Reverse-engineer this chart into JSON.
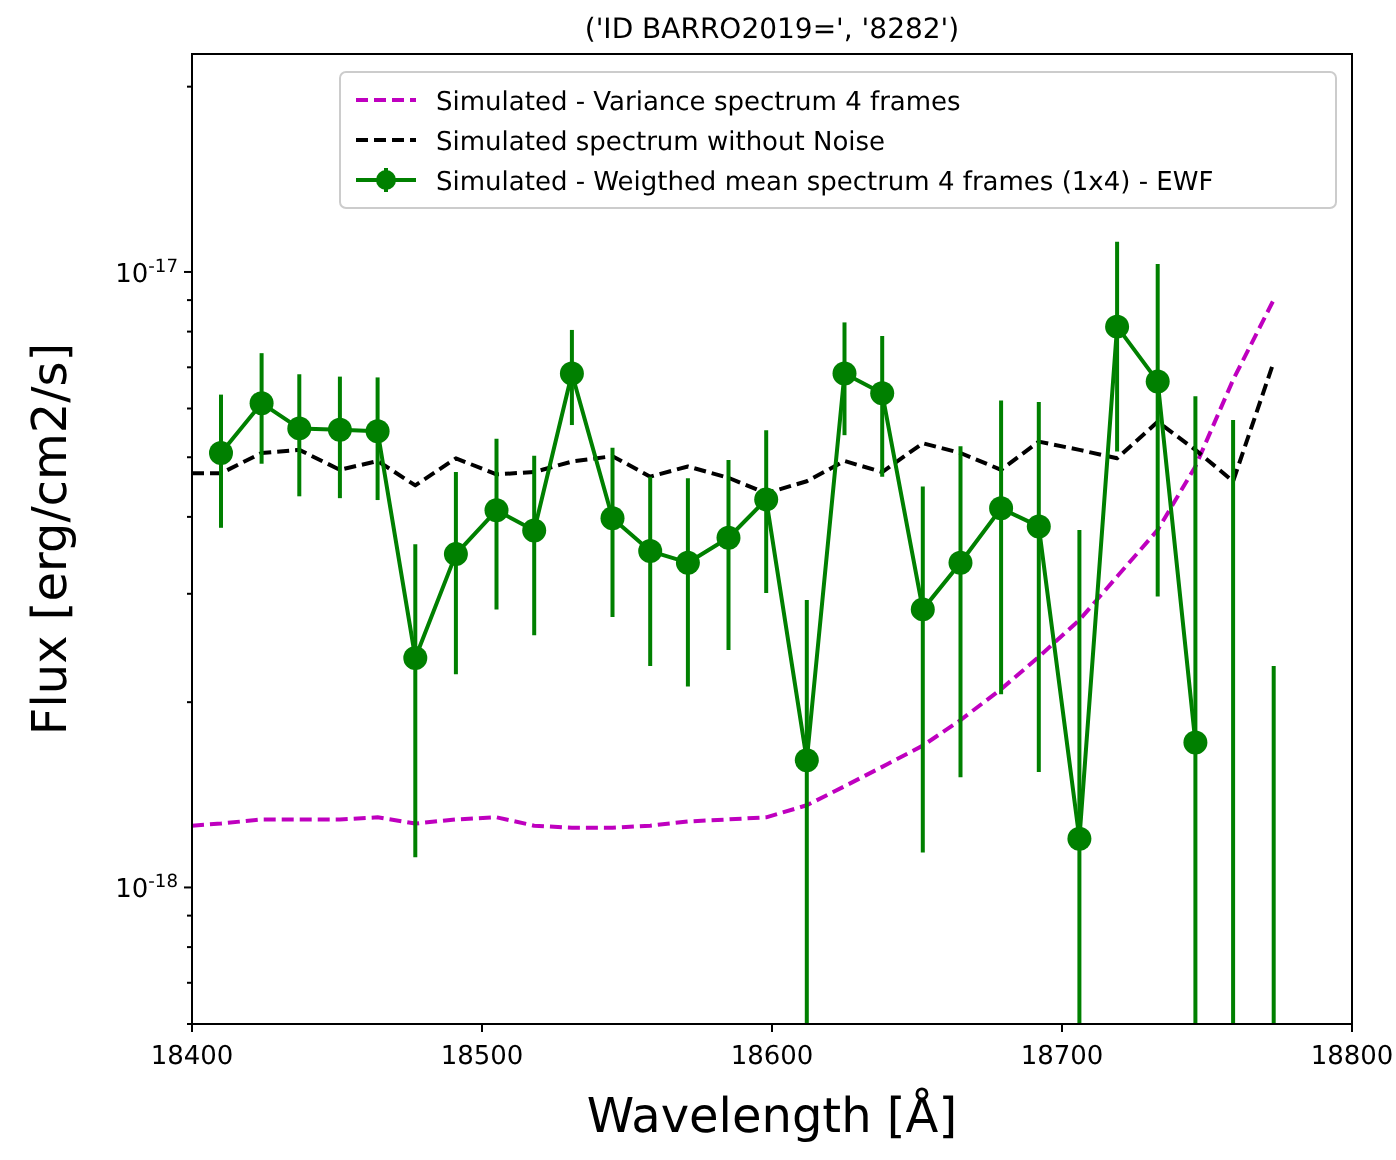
{
  "chart_data": {
    "type": "line",
    "title": "('ID BARRO2019=', '8282')",
    "xlabel": "Wavelength [Å]",
    "ylabel": "Flux [erg/cm2/s]",
    "log": "y",
    "legend": "top right",
    "grid": false,
    "xlim": [
      18400,
      18800
    ],
    "xticks": [
      18400,
      18500,
      18600,
      18700,
      18800
    ],
    "ylim": [
      6e-19,
      2.26e-17
    ],
    "yticks": [
      {
        "value": 6e-19,
        "label": null
      },
      {
        "value": 7e-19,
        "label": null
      },
      {
        "value": 8e-19,
        "label": null
      },
      {
        "value": 9e-19,
        "label": null
      },
      {
        "value": 1e-18,
        "label": "10$^{-18}$"
      },
      {
        "value": 2e-18,
        "label": null
      },
      {
        "value": 3e-18,
        "label": null
      },
      {
        "value": 4e-18,
        "label": null
      },
      {
        "value": 5e-18,
        "label": null
      },
      {
        "value": 6e-18,
        "label": null
      },
      {
        "value": 7e-18,
        "label": null
      },
      {
        "value": 8e-18,
        "label": null
      },
      {
        "value": 9e-18,
        "label": null
      },
      {
        "value": 1e-17,
        "label": "10$^{-17}$"
      },
      {
        "value": 2e-17,
        "label": null
      }
    ],
    "series": [
      {
        "name": "Simulated - Variance spectrum 4 frames",
        "color": "#bf00bf",
        "line_style": "dashed",
        "marker": "none",
        "x": [
          18400,
          18410,
          18424,
          18437,
          18451,
          18464,
          18477,
          18491,
          18505,
          18518,
          18531,
          18545,
          18558,
          18571,
          18585,
          18598,
          18612,
          18625,
          18638,
          18652,
          18665,
          18679,
          18692,
          18706,
          18719,
          18733,
          18746,
          18759,
          18773
        ],
        "values": [
          1.26e-18,
          1.27e-18,
          1.29e-18,
          1.29e-18,
          1.29e-18,
          1.3e-18,
          1.27e-18,
          1.29e-18,
          1.3e-18,
          1.26e-18,
          1.25e-18,
          1.25e-18,
          1.26e-18,
          1.28e-18,
          1.29e-18,
          1.3e-18,
          1.36e-18,
          1.46e-18,
          1.57e-18,
          1.7e-18,
          1.87e-18,
          2.1e-18,
          2.37e-18,
          2.72e-18,
          3.2e-18,
          3.81e-18,
          4.83e-18,
          6.68e-18,
          9.01e-18
        ]
      },
      {
        "name": "Simulated spectrum without Noise",
        "color": "#000000",
        "line_style": "dashed",
        "marker": "none",
        "x": [
          18400,
          18410,
          18424,
          18437,
          18451,
          18464,
          18477,
          18491,
          18505,
          18518,
          18531,
          18545,
          18558,
          18571,
          18585,
          18598,
          18612,
          18625,
          18638,
          18652,
          18665,
          18679,
          18692,
          18706,
          18719,
          18733,
          18746,
          18759,
          18773
        ],
        "values": [
          4.71e-18,
          4.71e-18,
          5.08e-18,
          5.14e-18,
          4.77e-18,
          4.93e-18,
          4.5e-18,
          4.98e-18,
          4.69e-18,
          4.73e-18,
          4.92e-18,
          5.02e-18,
          4.65e-18,
          4.83e-18,
          4.63e-18,
          4.37e-18,
          4.57e-18,
          4.93e-18,
          4.73e-18,
          5.27e-18,
          5.08e-18,
          4.77e-18,
          5.3e-18,
          5.14e-18,
          4.98e-18,
          5.71e-18,
          5.14e-18,
          4.57e-18,
          7.14e-18
        ]
      },
      {
        "name": "Simulated - Weigthed mean spectrum 4 frames (1x4) - EWF",
        "color": "#008000",
        "line_style": "solid",
        "marker": "circle",
        "x": [
          18410,
          18424,
          18437,
          18451,
          18464,
          18477,
          18491,
          18505,
          18518,
          18531,
          18545,
          18558,
          18571,
          18585,
          18598,
          18612,
          18625,
          18638,
          18652,
          18665,
          18679,
          18692,
          18706,
          18719,
          18733,
          18746
        ],
        "values": [
          5.08e-18,
          6.12e-18,
          5.57e-18,
          5.54e-18,
          5.51e-18,
          2.36e-18,
          3.48e-18,
          4.1e-18,
          3.8e-18,
          6.84e-18,
          3.98e-18,
          3.52e-18,
          3.37e-18,
          3.7e-18,
          4.27e-18,
          1.61e-18,
          6.84e-18,
          6.35e-18,
          2.83e-18,
          3.37e-18,
          4.13e-18,
          3.86e-18,
          1.2e-18,
          8.15e-18,
          6.64e-18,
          1.72e-18
        ],
        "errors": [
          [
            3.84e-18,
            6.32e-18
          ],
          [
            4.88e-18,
            7.38e-18
          ],
          [
            4.32e-18,
            6.82e-18
          ],
          [
            4.29e-18,
            6.76e-18
          ],
          [
            4.26e-18,
            6.74e-18
          ],
          [
            1.12e-18,
            3.61e-18
          ],
          [
            2.22e-18,
            4.73e-18
          ],
          [
            2.83e-18,
            5.36e-18
          ],
          [
            2.57e-18,
            5.03e-18
          ],
          [
            5.64e-18,
            8.05e-18
          ],
          [
            2.75e-18,
            5.18e-18
          ],
          [
            2.29e-18,
            4.65e-18
          ],
          [
            2.12e-18,
            4.62e-18
          ],
          [
            2.43e-18,
            4.95e-18
          ],
          [
            3.01e-18,
            5.53e-18
          ],
          [
            6e-19,
            2.93e-18
          ],
          [
            5.43e-18,
            8.28e-18
          ],
          [
            4.65e-18,
            7.87e-18
          ],
          [
            1.14e-18,
            4.48e-18
          ],
          [
            1.51e-18,
            5.21e-18
          ],
          [
            2.06e-18,
            6.18e-18
          ],
          [
            1.54e-18,
            6.15e-18
          ],
          [
            6e-19,
            3.81e-18
          ],
          [
            5.11e-18,
            1.12e-17
          ],
          [
            2.97e-18,
            1.03e-17
          ],
          [
            6e-19,
            6.28e-18
          ]
        ]
      },
      {
        "color": "#008000",
        "line_style": "solid",
        "marker": "none",
        "x": [
          18759,
          18759
        ],
        "values": [
          6e-19,
          5.75e-18
        ]
      },
      {
        "color": "#008000",
        "line_style": "solid",
        "marker": "none",
        "x": [
          18773,
          18773
        ],
        "values": [
          6e-19,
          2.29e-18
        ]
      }
    ]
  }
}
